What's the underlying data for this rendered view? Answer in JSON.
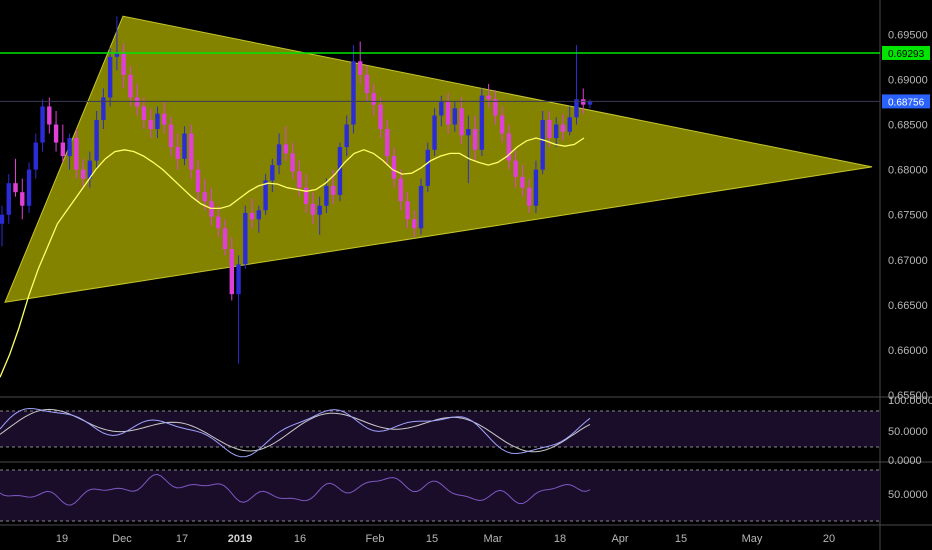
{
  "chart_data": {
    "type": "candlestick",
    "price_axis": {
      "range": [
        0.6548,
        0.6988
      ],
      "ticks": [
        "0.69500",
        "0.69000",
        "0.68500",
        "0.68000",
        "0.67500",
        "0.67000",
        "0.66500",
        "0.66000",
        "0.65500"
      ],
      "horizontal_level": {
        "label": "0.69293",
        "value": 0.69293,
        "color": "#00e600"
      },
      "last_price": {
        "label": "0.68756",
        "value": 0.68756,
        "color": "#2962ff"
      }
    },
    "time_axis": {
      "ticks": [
        "19",
        "Dec",
        "17",
        "2019",
        "16",
        "Feb",
        "15",
        "Mar",
        "18",
        "Apr",
        "15",
        "May",
        "20"
      ]
    },
    "triangle": {
      "color": "#b8b800",
      "apex_top": 0.697,
      "apex_right": 0.6803,
      "left_lower": 0.6653
    },
    "moving_average_color": "#ffff66",
    "candles": [
      [
        0.674,
        0.676,
        0.6715,
        0.675
      ],
      [
        0.675,
        0.6795,
        0.674,
        0.6785
      ],
      [
        0.6785,
        0.6812,
        0.677,
        0.6775
      ],
      [
        0.6775,
        0.679,
        0.6745,
        0.676
      ],
      [
        0.676,
        0.6808,
        0.6752,
        0.68
      ],
      [
        0.68,
        0.684,
        0.679,
        0.683
      ],
      [
        0.683,
        0.6878,
        0.682,
        0.687
      ],
      [
        0.687,
        0.688,
        0.684,
        0.685
      ],
      [
        0.685,
        0.6865,
        0.682,
        0.683
      ],
      [
        0.683,
        0.685,
        0.6808,
        0.6815
      ],
      [
        0.6815,
        0.684,
        0.68,
        0.6835
      ],
      [
        0.6835,
        0.6845,
        0.679,
        0.68
      ],
      [
        0.68,
        0.6812,
        0.6778,
        0.679
      ],
      [
        0.679,
        0.682,
        0.678,
        0.681
      ],
      [
        0.681,
        0.6865,
        0.68,
        0.6855
      ],
      [
        0.6855,
        0.689,
        0.6845,
        0.688
      ],
      [
        0.688,
        0.6935,
        0.687,
        0.6925
      ],
      [
        0.6925,
        0.697,
        0.691,
        0.693
      ],
      [
        0.693,
        0.694,
        0.689,
        0.6905
      ],
      [
        0.6905,
        0.6915,
        0.687,
        0.688
      ],
      [
        0.688,
        0.6895,
        0.686,
        0.687
      ],
      [
        0.687,
        0.688,
        0.6845,
        0.6855
      ],
      [
        0.6855,
        0.6868,
        0.6835,
        0.6845
      ],
      [
        0.6845,
        0.687,
        0.6835,
        0.6862
      ],
      [
        0.6862,
        0.6875,
        0.684,
        0.685
      ],
      [
        0.685,
        0.6858,
        0.6815,
        0.6825
      ],
      [
        0.6825,
        0.684,
        0.68,
        0.6812
      ],
      [
        0.6812,
        0.6848,
        0.6805,
        0.684
      ],
      [
        0.684,
        0.685,
        0.679,
        0.68
      ],
      [
        0.68,
        0.681,
        0.6765,
        0.6775
      ],
      [
        0.6775,
        0.679,
        0.6755,
        0.6765
      ],
      [
        0.6765,
        0.678,
        0.6738,
        0.6748
      ],
      [
        0.6748,
        0.676,
        0.6725,
        0.6735
      ],
      [
        0.6735,
        0.6745,
        0.6705,
        0.6712
      ],
      [
        0.6712,
        0.6725,
        0.6655,
        0.6662
      ],
      [
        0.6662,
        0.6705,
        0.6585,
        0.6695
      ],
      [
        0.6695,
        0.676,
        0.669,
        0.6752
      ],
      [
        0.6752,
        0.6768,
        0.6735,
        0.6745
      ],
      [
        0.6745,
        0.676,
        0.673,
        0.6755
      ],
      [
        0.6755,
        0.6795,
        0.675,
        0.6788
      ],
      [
        0.6788,
        0.6812,
        0.6775,
        0.6805
      ],
      [
        0.6805,
        0.684,
        0.6795,
        0.6828
      ],
      [
        0.6828,
        0.6848,
        0.681,
        0.6818
      ],
      [
        0.6818,
        0.683,
        0.679,
        0.6798
      ],
      [
        0.6798,
        0.681,
        0.677,
        0.678
      ],
      [
        0.678,
        0.6795,
        0.6752,
        0.6762
      ],
      [
        0.6762,
        0.6775,
        0.674,
        0.675
      ],
      [
        0.675,
        0.677,
        0.6728,
        0.676
      ],
      [
        0.676,
        0.679,
        0.6752,
        0.6782
      ],
      [
        0.6782,
        0.68,
        0.6762,
        0.6772
      ],
      [
        0.6772,
        0.683,
        0.6765,
        0.6825
      ],
      [
        0.6825,
        0.686,
        0.6815,
        0.685
      ],
      [
        0.685,
        0.6938,
        0.684,
        0.692
      ],
      [
        0.692,
        0.6942,
        0.6895,
        0.6905
      ],
      [
        0.6905,
        0.6915,
        0.6875,
        0.6885
      ],
      [
        0.6885,
        0.6895,
        0.686,
        0.6872
      ],
      [
        0.6872,
        0.688,
        0.6835,
        0.6845
      ],
      [
        0.6845,
        0.6855,
        0.6805,
        0.6815
      ],
      [
        0.6815,
        0.6825,
        0.678,
        0.679
      ],
      [
        0.679,
        0.68,
        0.6755,
        0.6765
      ],
      [
        0.6765,
        0.6775,
        0.6735,
        0.6745
      ],
      [
        0.6745,
        0.6755,
        0.6725,
        0.6735
      ],
      [
        0.6735,
        0.679,
        0.6728,
        0.6782
      ],
      [
        0.6782,
        0.683,
        0.6775,
        0.6822
      ],
      [
        0.6822,
        0.6868,
        0.6815,
        0.686
      ],
      [
        0.686,
        0.6882,
        0.6848,
        0.6875
      ],
      [
        0.6875,
        0.6885,
        0.684,
        0.685
      ],
      [
        0.685,
        0.6875,
        0.6842,
        0.6868
      ],
      [
        0.6868,
        0.688,
        0.6828,
        0.6838
      ],
      [
        0.6838,
        0.686,
        0.6785,
        0.6845
      ],
      [
        0.6845,
        0.686,
        0.681,
        0.6822
      ],
      [
        0.6822,
        0.689,
        0.6815,
        0.6882
      ],
      [
        0.6882,
        0.6895,
        0.6868,
        0.6878
      ],
      [
        0.6878,
        0.6888,
        0.685,
        0.686
      ],
      [
        0.686,
        0.687,
        0.683,
        0.684
      ],
      [
        0.684,
        0.685,
        0.68,
        0.681
      ],
      [
        0.681,
        0.6822,
        0.678,
        0.6792
      ],
      [
        0.6792,
        0.6805,
        0.677,
        0.678
      ],
      [
        0.678,
        0.679,
        0.6752,
        0.676
      ],
      [
        0.676,
        0.681,
        0.6752,
        0.68
      ],
      [
        0.68,
        0.6865,
        0.6795,
        0.6855
      ],
      [
        0.6855,
        0.6865,
        0.6825,
        0.6835
      ],
      [
        0.6835,
        0.6858,
        0.6825,
        0.685
      ],
      [
        0.685,
        0.6862,
        0.6832,
        0.6842
      ],
      [
        0.6842,
        0.687,
        0.6838,
        0.6858
      ],
      [
        0.6858,
        0.6938,
        0.685,
        0.6878
      ],
      [
        0.6878,
        0.689,
        0.6862,
        0.6872
      ],
      [
        0.6872,
        0.6878,
        0.6868,
        0.6876
      ]
    ],
    "ma": [
      0.657,
      0.6595,
      0.6625,
      0.666,
      0.669,
      0.6715,
      0.674,
      0.6755,
      0.677,
      0.6785,
      0.68,
      0.6812,
      0.682,
      0.6822,
      0.682,
      0.6815,
      0.6808,
      0.68,
      0.679,
      0.678,
      0.677,
      0.6762,
      0.6757,
      0.6757,
      0.676,
      0.6768,
      0.6776,
      0.6782,
      0.6785,
      0.6784,
      0.678,
      0.6778,
      0.6776,
      0.6778,
      0.6785,
      0.6795,
      0.6808,
      0.6818,
      0.6822,
      0.6818,
      0.681,
      0.68,
      0.6795,
      0.6796,
      0.6802,
      0.681,
      0.6815,
      0.6818,
      0.6818,
      0.6812,
      0.6808,
      0.6805,
      0.6808,
      0.6815,
      0.6825,
      0.6832,
      0.6835,
      0.6832,
      0.6828,
      0.6826,
      0.6828,
      0.6835
    ],
    "oscillator1": {
      "ticks": [
        "100.0000",
        "50.0000",
        "0.0000"
      ],
      "range": [
        0,
        100
      ],
      "band": [
        20,
        80
      ],
      "color_k": "#9fa3ff",
      "color_d": "#c9c9c9"
    },
    "oscillator2": {
      "ticks": [
        "50.0000"
      ],
      "color": "#7e57c2"
    }
  }
}
